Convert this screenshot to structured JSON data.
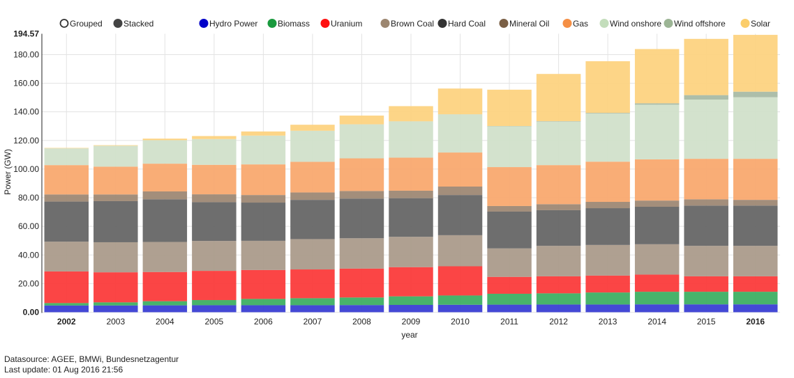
{
  "controls": {
    "grouped_label": "Grouped",
    "stacked_label": "Stacked",
    "selected": "Stacked"
  },
  "footer": {
    "source": "Datasource: AGEE, BMWi, Bundesnetzagentur",
    "update": "Last update: 01 Aug 2016 21:56"
  },
  "chart_data": {
    "type": "bar",
    "stacked": true,
    "title": "",
    "xlabel": "year",
    "ylabel": "Power (GW)",
    "ylim": [
      0,
      194.57
    ],
    "yticks": [
      "0.00",
      "20.00",
      "40.00",
      "60.00",
      "80.00",
      "100.00",
      "120.00",
      "140.00",
      "160.00",
      "180.00"
    ],
    "ymax_label": "194.57",
    "grid": true,
    "legend_position": "top",
    "categories": [
      "2002",
      "2003",
      "2004",
      "2005",
      "2006",
      "2007",
      "2008",
      "2009",
      "2010",
      "2011",
      "2012",
      "2013",
      "2014",
      "2015",
      "2016"
    ],
    "bold_categories": [
      "2002",
      "2016"
    ],
    "series": [
      {
        "name": "Hydro Power",
        "color": "#3a3fd4",
        "legend_color": "#0000c8",
        "values": [
          4.7,
          4.7,
          4.8,
          4.9,
          4.9,
          4.9,
          5.0,
          5.1,
          5.2,
          5.3,
          5.4,
          5.4,
          5.5,
          5.5,
          5.5
        ]
      },
      {
        "name": "Biomass",
        "color": "#3eaf63",
        "legend_color": "#1a9a3e",
        "values": [
          1.7,
          2.2,
          2.9,
          3.6,
          4.4,
          4.9,
          5.3,
          6.0,
          6.5,
          7.6,
          7.8,
          8.4,
          8.8,
          8.8,
          8.8
        ]
      },
      {
        "name": "Uranium",
        "color": "#fb3b3b",
        "legend_color": "#ff1010",
        "values": [
          22.1,
          21.0,
          20.4,
          20.4,
          20.2,
          20.1,
          20.2,
          20.4,
          20.4,
          11.8,
          11.9,
          11.8,
          12.0,
          10.8,
          10.8
        ]
      },
      {
        "name": "Brown Coal",
        "color": "#ab9b8b",
        "legend_color": "#9c8670",
        "values": [
          20.8,
          21.0,
          21.0,
          20.9,
          20.4,
          21.2,
          21.2,
          21.2,
          21.7,
          19.9,
          21.3,
          21.4,
          21.2,
          21.3,
          21.3
        ]
      },
      {
        "name": "Hard Coal",
        "color": "#666666",
        "legend_color": "#333333",
        "values": [
          28.0,
          28.7,
          29.8,
          27.1,
          26.7,
          27.4,
          27.7,
          27.0,
          28.1,
          25.7,
          24.9,
          25.7,
          26.2,
          28.1,
          28.1
        ]
      },
      {
        "name": "Mineral Oil",
        "color": "#9e8874",
        "legend_color": "#7a5f45",
        "values": [
          5.0,
          4.7,
          5.5,
          5.5,
          5.3,
          5.2,
          5.3,
          5.2,
          5.9,
          3.9,
          4.2,
          4.4,
          4.3,
          4.4,
          4.0
        ]
      },
      {
        "name": "Gas",
        "color": "#f9a96f",
        "legend_color": "#f58f45",
        "values": [
          20.5,
          19.4,
          19.4,
          20.6,
          21.4,
          21.4,
          22.8,
          23.1,
          23.8,
          27.2,
          27.3,
          28.1,
          28.8,
          28.3,
          28.7
        ]
      },
      {
        "name": "Wind onshore",
        "color": "#d1e0ca",
        "legend_color": "#c3ddbb",
        "values": [
          11.7,
          14.6,
          16.4,
          18.0,
          20.1,
          21.7,
          23.8,
          25.3,
          26.6,
          28.5,
          30.4,
          33.6,
          38.2,
          41.4,
          43.0
        ]
      },
      {
        "name": "Wind offshore",
        "color": "#a9bba5",
        "legend_color": "#9cb595",
        "values": [
          0,
          0,
          0,
          0,
          0,
          0,
          0,
          0.1,
          0.1,
          0.2,
          0.3,
          0.5,
          1.0,
          3.1,
          3.9
        ]
      },
      {
        "name": "Solar",
        "color": "#fdd381",
        "legend_color": "#fbcd6a",
        "values": [
          0.3,
          0.4,
          1.1,
          2.1,
          2.9,
          4.2,
          6.1,
          10.6,
          18.0,
          25.4,
          33.0,
          36.1,
          37.9,
          39.3,
          39.7
        ]
      }
    ]
  }
}
